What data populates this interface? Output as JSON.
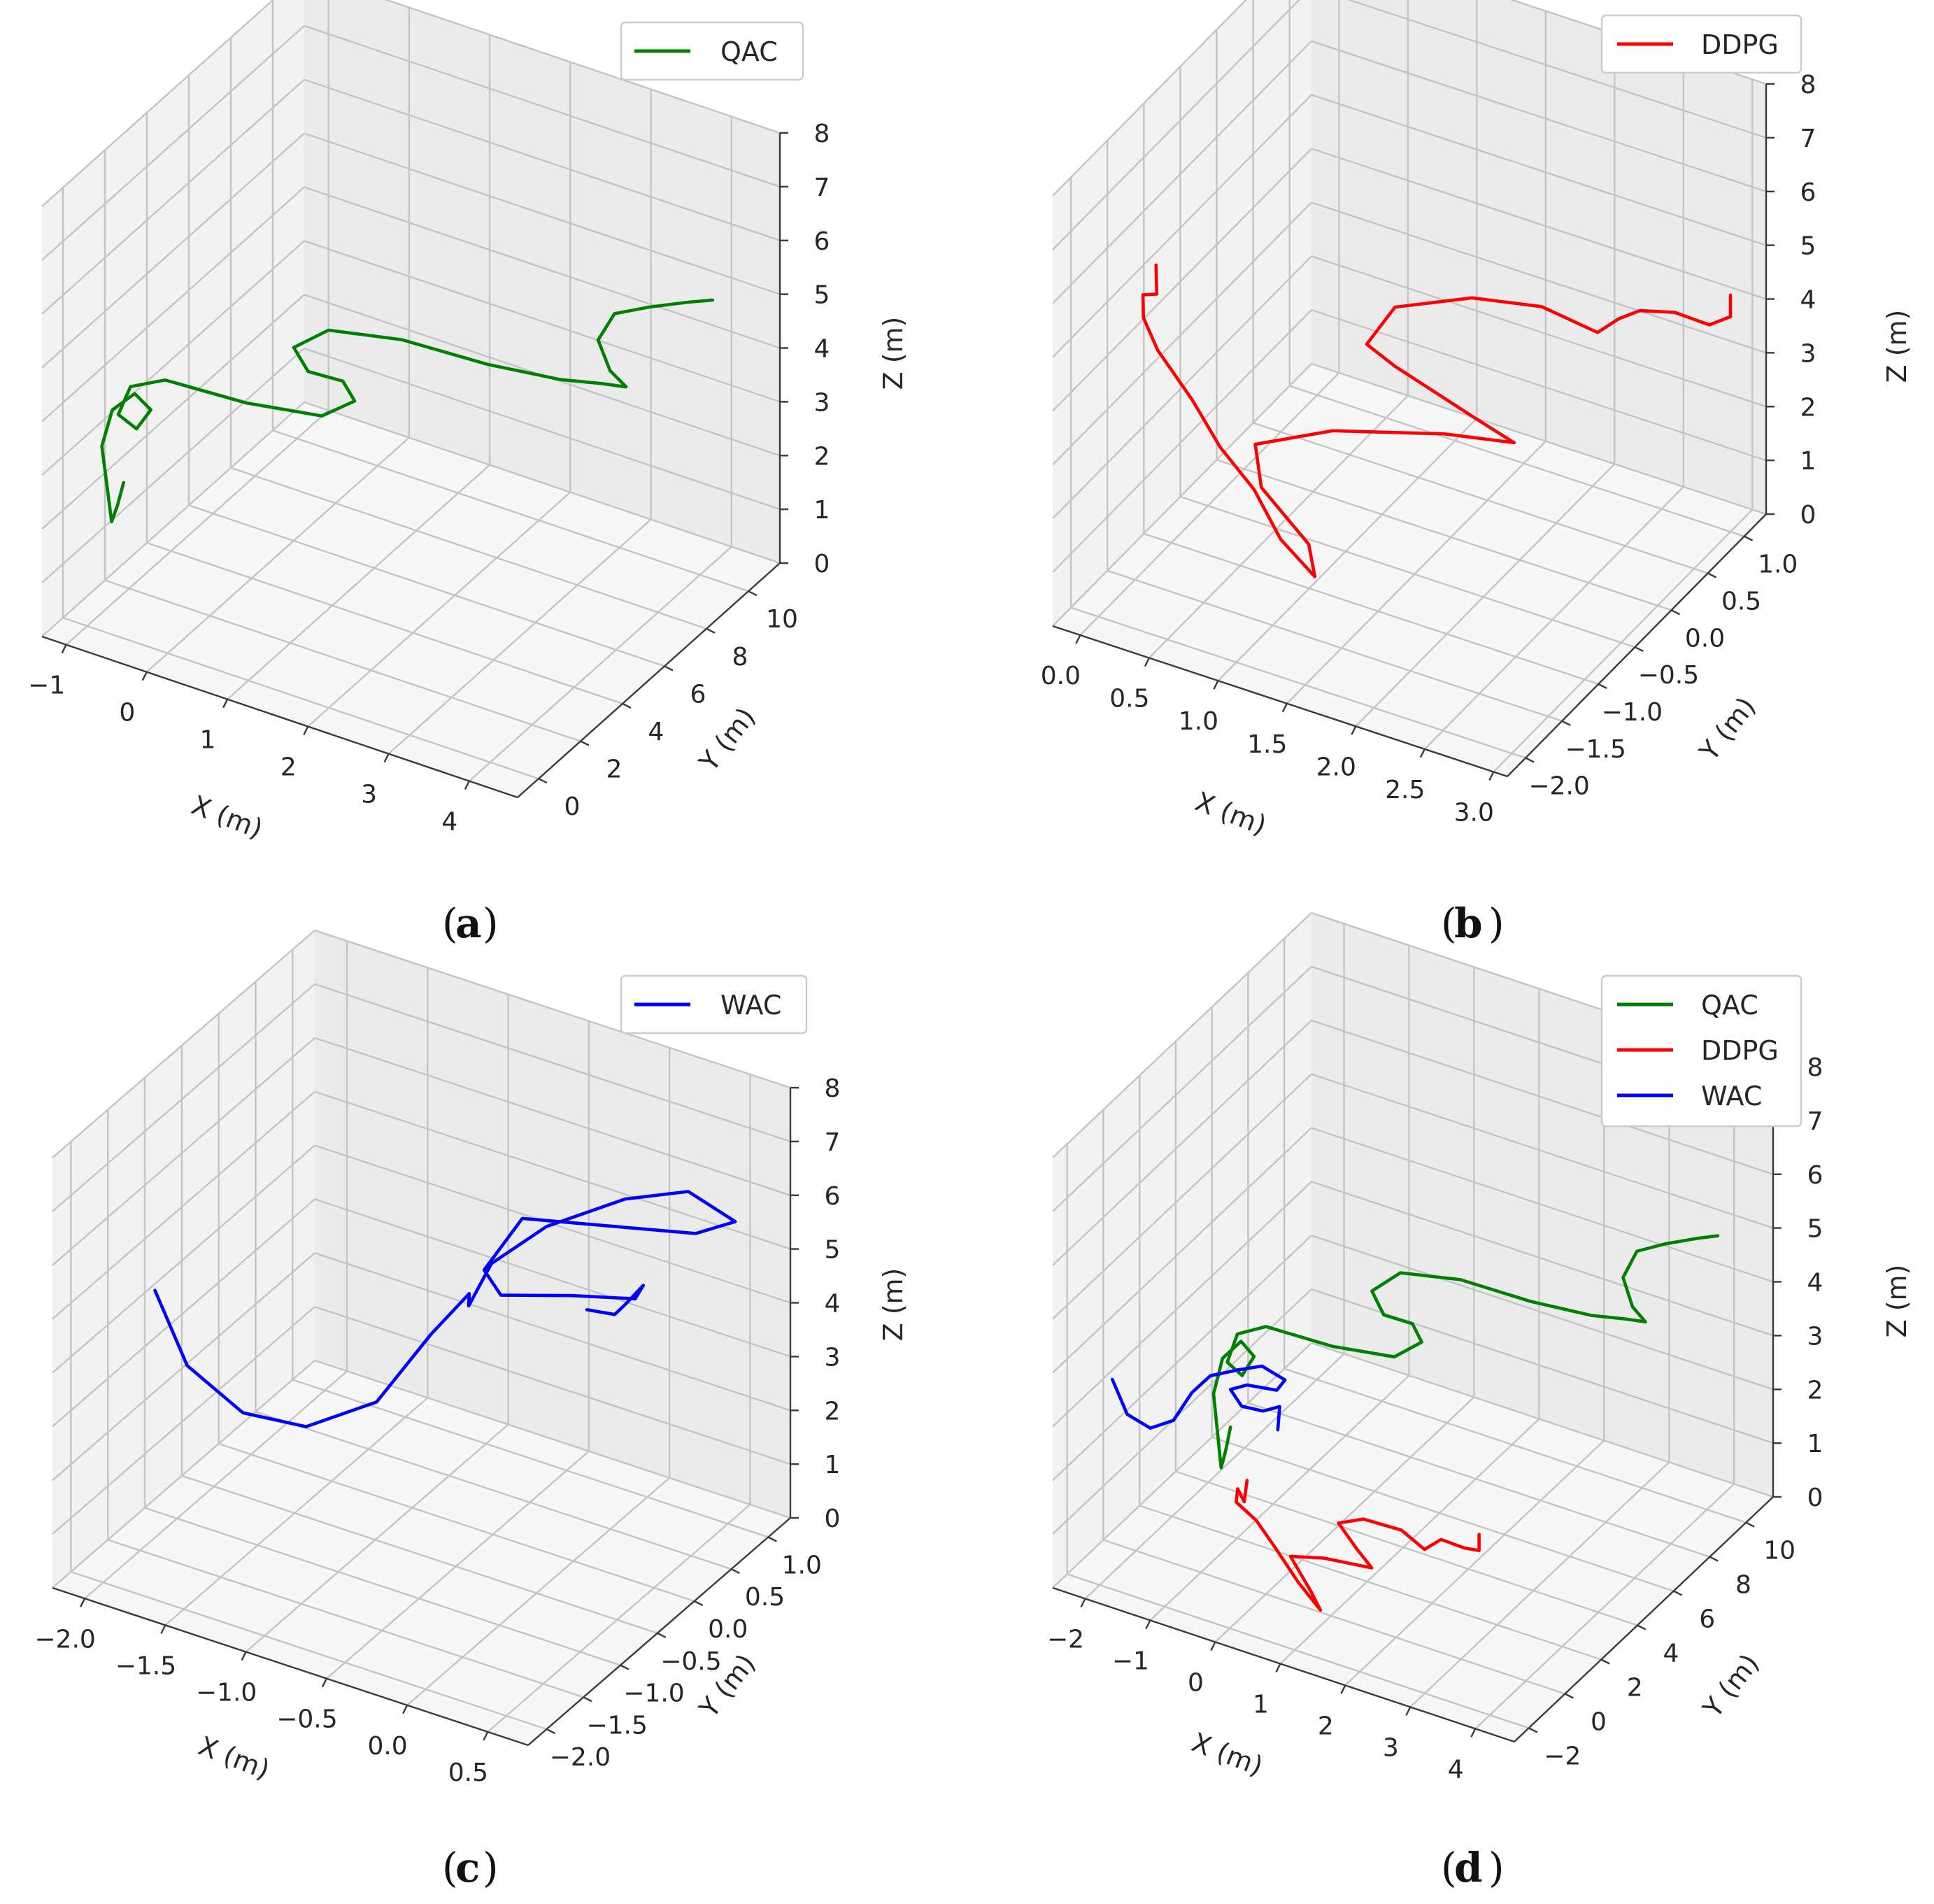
{
  "figure": {
    "panel_labels": [
      "a",
      "b",
      "c",
      "d"
    ]
  },
  "chart_data": [
    {
      "type": "line3d",
      "panel": "a",
      "xlabel": "X (m)",
      "ylabel": "Y (m)",
      "zlabel": "Z (m)",
      "xlim": [
        -1.3,
        4.6
      ],
      "ylim": [
        -1.0,
        11.5
      ],
      "zlim": [
        0,
        8
      ],
      "xticks": [
        -1,
        0,
        1,
        2,
        3,
        4
      ],
      "yticks": [
        0,
        2,
        4,
        6,
        8,
        10
      ],
      "zticks": [
        0,
        1,
        2,
        3,
        4,
        5,
        6,
        7,
        8
      ],
      "xtick_labels": [
        "−1",
        "0",
        "1",
        "2",
        "3",
        "4"
      ],
      "ytick_labels": [
        "0",
        "2",
        "4",
        "6",
        "8",
        "10"
      ],
      "ztick_labels": [
        "0",
        "1",
        "2",
        "3",
        "4",
        "5",
        "6",
        "7",
        "8"
      ],
      "legend": [
        "QAC"
      ],
      "series": [
        {
          "name": "QAC",
          "color": "#008000",
          "points": [
            [
              -0.6,
              0.2,
              2.8
            ],
            [
              -0.7,
              0.3,
              2.3
            ],
            [
              -0.8,
              0.4,
              1.9
            ],
            [
              -1.0,
              0.7,
              3.1
            ],
            [
              -1.0,
              1.2,
              3.6
            ],
            [
              -0.8,
              1.5,
              3.9
            ],
            [
              -0.6,
              1.5,
              3.7
            ],
            [
              -0.7,
              1.2,
              3.4
            ],
            [
              -0.9,
              1.1,
              3.6
            ],
            [
              -0.8,
              1.3,
              4.1
            ],
            [
              -0.5,
              1.8,
              4.2
            ],
            [
              0.3,
              2.6,
              3.9
            ],
            [
              1.0,
              3.5,
              3.7
            ],
            [
              1.2,
              4.3,
              3.8
            ],
            [
              1.0,
              4.5,
              4.0
            ],
            [
              0.7,
              4.0,
              4.2
            ],
            [
              0.6,
              3.7,
              4.7
            ],
            [
              0.9,
              4.2,
              5.0
            ],
            [
              1.6,
              5.0,
              4.9
            ],
            [
              2.4,
              6.0,
              4.5
            ],
            [
              3.0,
              7.2,
              4.1
            ],
            [
              3.3,
              8.0,
              3.9
            ],
            [
              3.5,
              8.4,
              3.8
            ],
            [
              3.3,
              8.4,
              4.0
            ],
            [
              3.1,
              8.6,
              4.4
            ],
            [
              3.2,
              9.0,
              4.8
            ],
            [
              3.5,
              9.5,
              4.9
            ],
            [
              3.8,
              10.2,
              4.9
            ],
            [
              4.0,
              10.6,
              4.9
            ]
          ]
        }
      ]
    },
    {
      "type": "line3d",
      "panel": "b",
      "xlabel": "X (m)",
      "ylabel": "Y (m)",
      "zlabel": "Z (m)",
      "xlim": [
        -0.2,
        3.1
      ],
      "ylim": [
        -2.25,
        1.3
      ],
      "zlim": [
        0,
        8
      ],
      "xticks": [
        0.0,
        0.5,
        1.0,
        1.5,
        2.0,
        2.5,
        3.0
      ],
      "yticks": [
        -2.0,
        -1.5,
        -1.0,
        -0.5,
        0.0,
        0.5,
        1.0
      ],
      "zticks": [
        0,
        1,
        2,
        3,
        4,
        5,
        6,
        7,
        8
      ],
      "xtick_labels": [
        "0.0",
        "0.5",
        "1.0",
        "1.5",
        "2.0",
        "2.5",
        "3.0"
      ],
      "ytick_labels": [
        "−2.0",
        "−1.5",
        "−1.0",
        "−0.5",
        "0.0",
        "0.5",
        "1.0"
      ],
      "ztick_labels": [
        "0",
        "1",
        "2",
        "3",
        "4",
        "5",
        "6",
        "7",
        "8"
      ],
      "legend": [
        "DDPG"
      ],
      "series": [
        {
          "name": "DDPG",
          "color": "#ff0000",
          "points": [
            [
              0.1,
              -1.4,
              5.8
            ],
            [
              0.0,
              -1.2,
              4.9
            ],
            [
              -0.1,
              -1.2,
              4.8
            ],
            [
              -0.15,
              -1.1,
              4.2
            ],
            [
              -0.1,
              -1.0,
              3.5
            ],
            [
              0.1,
              -0.9,
              2.6
            ],
            [
              0.3,
              -0.9,
              1.9
            ],
            [
              0.6,
              -1.0,
              1.5
            ],
            [
              0.9,
              -1.2,
              1.1
            ],
            [
              1.2,
              -1.3,
              0.8
            ],
            [
              1.05,
              -1.1,
              1.0
            ],
            [
              0.6,
              -0.9,
              1.4
            ],
            [
              0.45,
              -0.7,
              1.8
            ],
            [
              0.8,
              -0.3,
              1.8
            ],
            [
              1.4,
              0.1,
              1.7
            ],
            [
              1.8,
              0.3,
              1.6
            ],
            [
              1.6,
              0.1,
              2.2
            ],
            [
              1.2,
              -0.2,
              3.2
            ],
            [
              1.1,
              -0.4,
              3.8
            ],
            [
              1.2,
              -0.2,
              4.3
            ],
            [
              1.6,
              0.1,
              4.4
            ],
            [
              2.0,
              0.3,
              4.3
            ],
            [
              2.3,
              0.5,
              3.8
            ],
            [
              2.4,
              0.6,
              4.0
            ],
            [
              2.5,
              0.7,
              4.1
            ],
            [
              2.7,
              0.8,
              4.1
            ],
            [
              2.9,
              0.9,
              3.9
            ],
            [
              3.0,
              1.0,
              4.0
            ],
            [
              3.0,
              1.0,
              4.4
            ]
          ]
        }
      ]
    },
    {
      "type": "line3d",
      "panel": "c",
      "xlabel": "X (m)",
      "ylabel": "Y (m)",
      "zlabel": "Z (m)",
      "xlim": [
        -2.2,
        0.75
      ],
      "ylim": [
        -2.25,
        1.3
      ],
      "zlim": [
        0,
        8
      ],
      "xticks": [
        -2.0,
        -1.5,
        -1.0,
        -0.5,
        0.0,
        0.5
      ],
      "yticks": [
        -2.0,
        -1.5,
        -1.0,
        -0.5,
        0.0,
        0.5,
        1.0
      ],
      "zticks": [
        0,
        1,
        2,
        3,
        4,
        5,
        6,
        7,
        8
      ],
      "xtick_labels": [
        "−2.0",
        "−1.5",
        "−1.0",
        "−0.5",
        "0.0",
        "0.5"
      ],
      "ytick_labels": [
        "−2.0",
        "−1.5",
        "−1.0",
        "−0.5",
        "0.0",
        "0.5",
        "1.0"
      ],
      "ztick_labels": [
        "0",
        "1",
        "2",
        "3",
        "4",
        "5",
        "6",
        "7",
        "8"
      ],
      "legend": [
        "WAC"
      ],
      "series": [
        {
          "name": "WAC",
          "color": "#0000ff",
          "points": [
            [
              -2.0,
              -1.3,
              4.6
            ],
            [
              -1.8,
              -1.3,
              3.4
            ],
            [
              -1.5,
              -1.2,
              2.7
            ],
            [
              -1.2,
              -1.0,
              2.5
            ],
            [
              -0.9,
              -0.7,
              2.9
            ],
            [
              -0.7,
              -0.4,
              4.0
            ],
            [
              -0.6,
              -0.1,
              4.5
            ],
            [
              -0.65,
              0.0,
              4.1
            ],
            [
              -0.6,
              0.2,
              4.7
            ],
            [
              -0.35,
              0.4,
              5.4
            ],
            [
              0.0,
              0.7,
              5.9
            ],
            [
              0.3,
              0.9,
              6.1
            ],
            [
              0.5,
              1.1,
              5.5
            ],
            [
              0.3,
              1.0,
              5.2
            ],
            [
              -0.1,
              0.7,
              5.3
            ],
            [
              -0.5,
              0.4,
              5.4
            ],
            [
              -0.6,
              0.1,
              4.7
            ],
            [
              -0.45,
              0.0,
              4.5
            ],
            [
              -0.1,
              0.2,
              4.6
            ],
            [
              0.2,
              0.4,
              4.6
            ],
            [
              0.25,
              0.4,
              4.9
            ],
            [
              0.1,
              0.5,
              4.3
            ],
            [
              0.05,
              0.45,
              4.1
            ],
            [
              -0.1,
              0.4,
              4.1
            ]
          ]
        }
      ]
    },
    {
      "type": "line3d",
      "panel": "d",
      "xlabel": "X (m)",
      "ylabel": "Y (m)",
      "zlabel": "Z (m)",
      "xlim": [
        -2.5,
        4.6
      ],
      "ylim": [
        -2.8,
        11.5
      ],
      "zlim": [
        0,
        8
      ],
      "xticks": [
        -2,
        -1,
        0,
        1,
        2,
        3,
        4
      ],
      "yticks": [
        -2,
        0,
        2,
        4,
        6,
        8,
        10
      ],
      "zticks": [
        0,
        1,
        2,
        3,
        4,
        5,
        6,
        7,
        8
      ],
      "xtick_labels": [
        "−2",
        "−1",
        "0",
        "1",
        "2",
        "3",
        "4"
      ],
      "ytick_labels": [
        "−2",
        "0",
        "2",
        "4",
        "6",
        "8",
        "10"
      ],
      "ztick_labels": [
        "0",
        "1",
        "2",
        "3",
        "4",
        "5",
        "6",
        "7",
        "8"
      ],
      "legend": [
        "QAC",
        "DDPG",
        "WAC"
      ],
      "series": [
        {
          "name": "QAC",
          "color": "#008000",
          "points": [
            [
              -0.6,
              0.2,
              2.8
            ],
            [
              -0.7,
              0.3,
              2.3
            ],
            [
              -0.8,
              0.4,
              1.9
            ],
            [
              -1.0,
              0.7,
              3.1
            ],
            [
              -1.0,
              1.2,
              3.6
            ],
            [
              -0.8,
              1.5,
              3.9
            ],
            [
              -0.6,
              1.5,
              3.7
            ],
            [
              -0.7,
              1.2,
              3.4
            ],
            [
              -0.9,
              1.1,
              3.6
            ],
            [
              -0.8,
              1.3,
              4.1
            ],
            [
              -0.5,
              1.8,
              4.2
            ],
            [
              0.3,
              2.6,
              3.9
            ],
            [
              1.0,
              3.5,
              3.7
            ],
            [
              1.2,
              4.3,
              3.8
            ],
            [
              1.0,
              4.5,
              4.0
            ],
            [
              0.7,
              4.0,
              4.2
            ],
            [
              0.6,
              3.7,
              4.7
            ],
            [
              0.9,
              4.2,
              5.0
            ],
            [
              1.6,
              5.0,
              4.9
            ],
            [
              2.4,
              6.0,
              4.5
            ],
            [
              3.0,
              7.2,
              4.1
            ],
            [
              3.3,
              8.0,
              3.9
            ],
            [
              3.5,
              8.4,
              3.8
            ],
            [
              3.3,
              8.4,
              4.0
            ],
            [
              3.1,
              8.6,
              4.4
            ],
            [
              3.2,
              9.0,
              4.8
            ],
            [
              3.5,
              9.5,
              4.9
            ],
            [
              3.8,
              10.2,
              4.9
            ],
            [
              4.0,
              10.6,
              4.9
            ]
          ]
        },
        {
          "name": "DDPG",
          "color": "#ff0000",
          "points": [
            [
              0.1,
              -1.4,
              2.6
            ],
            [
              0.0,
              -1.2,
              2.1
            ],
            [
              -0.1,
              -1.2,
              2.3
            ],
            [
              -0.15,
              -1.1,
              2.0
            ],
            [
              0.1,
              -0.9,
              1.7
            ],
            [
              0.4,
              -0.9,
              1.3
            ],
            [
              0.8,
              -1.1,
              0.9
            ],
            [
              1.2,
              -1.3,
              0.6
            ],
            [
              1.0,
              -1.1,
              0.8
            ],
            [
              0.6,
              -0.8,
              1.2
            ],
            [
              1.0,
              -0.4,
              1.2
            ],
            [
              1.6,
              0.1,
              1.1
            ],
            [
              1.4,
              0.0,
              1.4
            ],
            [
              1.2,
              -0.3,
              1.9
            ],
            [
              1.5,
              0.0,
              2.0
            ],
            [
              2.0,
              0.3,
              1.9
            ],
            [
              2.3,
              0.5,
              1.6
            ],
            [
              2.5,
              0.7,
              1.8
            ],
            [
              2.8,
              0.9,
              1.7
            ],
            [
              3.0,
              1.0,
              1.7
            ],
            [
              3.0,
              1.0,
              2.0
            ]
          ]
        },
        {
          "name": "WAC",
          "color": "#0000ff",
          "points": [
            [
              -2.0,
              -1.3,
              3.6
            ],
            [
              -1.8,
              -1.2,
              3.0
            ],
            [
              -1.5,
              -1.0,
              2.8
            ],
            [
              -1.2,
              -0.8,
              3.0
            ],
            [
              -1.0,
              -0.5,
              3.5
            ],
            [
              -0.8,
              -0.2,
              3.8
            ],
            [
              -0.5,
              0.2,
              3.9
            ],
            [
              -0.2,
              0.5,
              4.0
            ],
            [
              0.1,
              0.7,
              3.8
            ],
            [
              0.0,
              0.6,
              3.6
            ],
            [
              -0.4,
              0.4,
              3.6
            ],
            [
              -0.6,
              0.2,
              3.5
            ],
            [
              -0.4,
              0.1,
              3.3
            ],
            [
              -0.1,
              0.2,
              3.3
            ],
            [
              0.1,
              0.4,
              3.4
            ],
            [
              0.1,
              0.3,
              3.0
            ]
          ]
        }
      ]
    }
  ]
}
